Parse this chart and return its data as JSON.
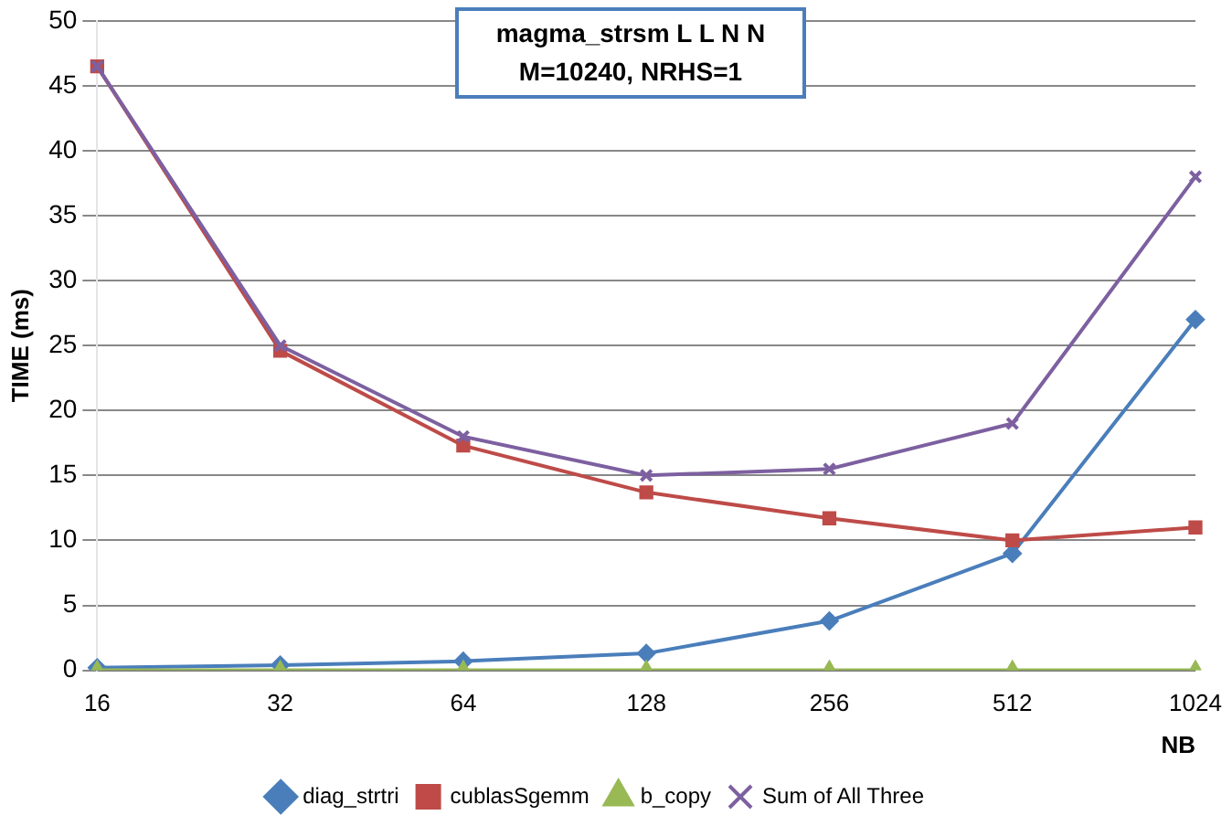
{
  "chart_data": {
    "type": "line",
    "title": "magma_strsm  L L N N\nM=10240, NRHS=1",
    "xlabel": "NB",
    "ylabel": "TIME (ms)",
    "categories": [
      "16",
      "32",
      "64",
      "128",
      "256",
      "512",
      "1024"
    ],
    "series": [
      {
        "name": "diag_strtri",
        "color": "#4a7ebb",
        "marker": "diamond",
        "values": [
          0.2,
          0.4,
          0.7,
          1.3,
          3.8,
          9,
          27
        ]
      },
      {
        "name": "cublasSgemm",
        "color": "#be4b48",
        "marker": "square",
        "values": [
          46.5,
          24.6,
          17.3,
          13.7,
          11.7,
          10,
          11
        ]
      },
      {
        "name": "b_copy",
        "color": "#98b954",
        "marker": "triangle",
        "values": [
          0,
          0,
          0,
          0,
          0,
          0,
          0
        ]
      },
      {
        "name": "Sum of All Three",
        "color": "#7d60a0",
        "marker": "cross",
        "values": [
          46.5,
          25,
          18,
          15,
          15.5,
          19,
          38
        ]
      }
    ],
    "ylim": [
      0,
      50
    ],
    "yticks": [
      0,
      5,
      10,
      15,
      20,
      25,
      30,
      35,
      40,
      45,
      50
    ],
    "grid": "y",
    "legend": "bottom"
  }
}
